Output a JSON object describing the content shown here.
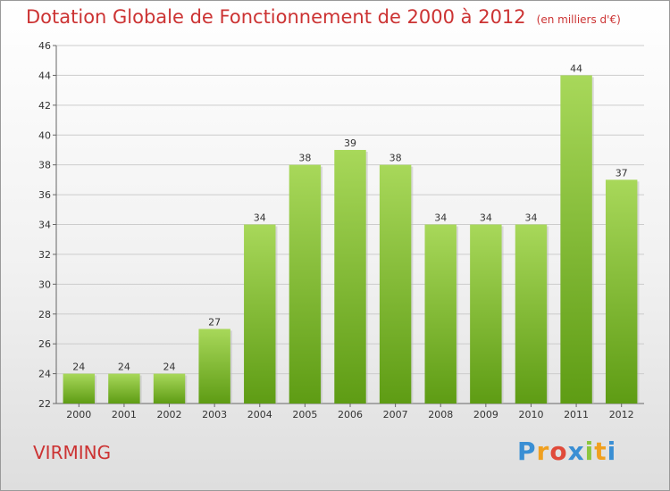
{
  "title": "Dotation Globale de Fonctionnement de 2000 à 2012",
  "subtitle": "(en milliers d'€)",
  "commune": "VIRMING",
  "logo": {
    "letters": [
      "P",
      "r",
      "o",
      "x",
      "i",
      "t",
      "i"
    ],
    "colors": [
      "#3a8fd4",
      "#f0a020",
      "#e04a3a",
      "#3a8fd4",
      "#8cc63f",
      "#f0a020",
      "#3a8fd4"
    ]
  },
  "colors": {
    "title": "#cc3333",
    "bar_top": "#a8d85a",
    "bar_bottom": "#5e9c14",
    "grid": "#cccccc"
  },
  "chart_data": {
    "type": "bar",
    "categories": [
      "2000",
      "2001",
      "2002",
      "2003",
      "2004",
      "2005",
      "2006",
      "2007",
      "2008",
      "2009",
      "2010",
      "2011",
      "2012"
    ],
    "values": [
      24,
      24,
      24,
      27,
      34,
      38,
      39,
      38,
      34,
      34,
      34,
      44,
      37
    ],
    "title": "Dotation Globale de Fonctionnement de 2000 à 2012",
    "ylim": [
      22,
      46
    ],
    "yticks": [
      22,
      24,
      26,
      28,
      30,
      32,
      34,
      36,
      38,
      40,
      42,
      44,
      46
    ],
    "grid": true
  }
}
